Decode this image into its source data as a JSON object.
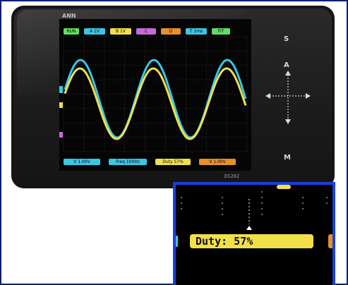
{
  "device": {
    "brand": "ANN",
    "model": "DS202",
    "keys": {
      "s": "S",
      "a": "A",
      "m": "M"
    }
  },
  "colors": {
    "frame": "#0d1f78",
    "inset_border": "#1a3fe0",
    "ch_a": "#39c7e6",
    "ch_b": "#f1e04a",
    "grid": "#4a4a4a"
  },
  "screen": {
    "top_tags": [
      {
        "label": "RUN",
        "color": "#5fe05f"
      },
      {
        "label": "A 1V",
        "color": "#39c7e6"
      },
      {
        "label": "B 1V",
        "color": "#f1e04a"
      },
      {
        "label": "C",
        "color": "#c76ad8"
      },
      {
        "label": "D",
        "color": "#e6902a"
      },
      {
        "label": "T 1ms",
        "color": "#39c7e6"
      },
      {
        "label": "FIT",
        "color": "#5fe05f"
      }
    ],
    "bottom_tags": [
      {
        "label": "V 1.00V",
        "color": "#39c7e6"
      },
      {
        "label": "Freq 100Hz",
        "color": "#39c7e6"
      },
      {
        "label": "Duty 57%",
        "color": "#f1e04a"
      },
      {
        "label": "V 1.00V",
        "color": "#e6902a"
      }
    ]
  },
  "inset": {
    "duty_text": "Duty: 57%"
  }
}
